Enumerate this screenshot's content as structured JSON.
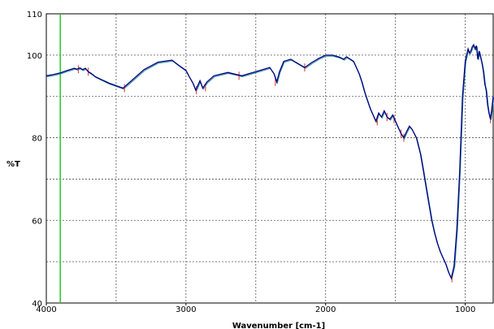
{
  "chart_data": {
    "type": "line",
    "xlabel": "Wavenumber [cm-1]",
    "ylabel": "%T",
    "xlim": [
      4000,
      800
    ],
    "ylim": [
      40,
      110
    ],
    "x_reversed": true,
    "grid": true,
    "xticks": [
      4000,
      3000,
      2000,
      1000
    ],
    "xtick_labels": [
      "4000",
      "3000",
      "2000",
      "1000"
    ],
    "yticks": [
      40,
      60,
      80,
      100,
      110
    ],
    "ytick_labels": [
      "40",
      "60",
      "80",
      "100",
      "110"
    ],
    "marker_line_x": 3900,
    "colors": {
      "spectrum": "#000080",
      "overlay": "#2b8c9c",
      "peak_marker": "#e05050",
      "marker_line": "#22cc22",
      "grid": "#555555"
    },
    "series": [
      {
        "x": [
          4000,
          3950,
          3900,
          3850,
          3800,
          3780,
          3760,
          3740,
          3720,
          3700,
          3680,
          3650,
          3600,
          3550,
          3500,
          3450,
          3400,
          3300,
          3200,
          3100,
          3050,
          3000,
          2980,
          2950,
          2930,
          2900,
          2880,
          2850,
          2800,
          2700,
          2600,
          2500,
          2400,
          2370,
          2350,
          2330,
          2300,
          2250,
          2200,
          2150,
          2100,
          2050,
          2000,
          1950,
          1900,
          1870,
          1850,
          1800,
          1780,
          1760,
          1740,
          1720,
          1700,
          1680,
          1660,
          1640,
          1620,
          1600,
          1580,
          1560,
          1540,
          1520,
          1500,
          1480,
          1460,
          1440,
          1420,
          1400,
          1380,
          1350,
          1320,
          1300,
          1280,
          1260,
          1240,
          1220,
          1200,
          1180,
          1160,
          1140,
          1120,
          1100,
          1080,
          1060,
          1040,
          1020,
          1000,
          990,
          980,
          970,
          960,
          950,
          940,
          930,
          920,
          910,
          900,
          890,
          880,
          870,
          860,
          850,
          840,
          830,
          820,
          810,
          800
        ],
        "y": [
          95.0,
          95.3,
          95.7,
          96.3,
          96.8,
          96.6,
          96.9,
          96.5,
          96.8,
          96.0,
          95.6,
          94.8,
          94.0,
          93.2,
          92.6,
          92.0,
          93.5,
          96.5,
          98.3,
          98.8,
          97.5,
          96.3,
          95.0,
          93.2,
          91.5,
          93.8,
          92.0,
          93.5,
          95.0,
          95.8,
          95.0,
          96.0,
          97.0,
          95.5,
          93.5,
          96.0,
          98.5,
          99.0,
          98.0,
          97.0,
          98.2,
          99.2,
          100.0,
          100.0,
          99.5,
          99.0,
          99.6,
          98.5,
          97.0,
          95.5,
          93.5,
          91.0,
          89.0,
          87.0,
          85.5,
          84.0,
          86.0,
          85.0,
          86.5,
          85.0,
          84.5,
          85.5,
          84.0,
          82.5,
          81.0,
          80.0,
          81.5,
          82.8,
          82.0,
          80.0,
          76.0,
          72.0,
          68.0,
          64.0,
          60.0,
          57.0,
          54.5,
          52.5,
          51.0,
          49.5,
          47.5,
          46.0,
          49.0,
          58.0,
          72.0,
          90.0,
          98.5,
          100.0,
          101.5,
          100.5,
          101.0,
          102.0,
          102.5,
          101.5,
          102.3,
          99.0,
          101.0,
          99.5,
          98.0,
          96.0,
          93.0,
          91.5,
          88.0,
          86.0,
          84.5,
          87.0,
          90.0
        ]
      }
    ],
    "peak_markers": [
      {
        "x": 3770,
        "y": 96.6
      },
      {
        "x": 3700,
        "y": 96.0
      },
      {
        "x": 3440,
        "y": 92.0
      },
      {
        "x": 2925,
        "y": 91.5
      },
      {
        "x": 2860,
        "y": 92.2
      },
      {
        "x": 2620,
        "y": 95.0
      },
      {
        "x": 2360,
        "y": 93.5
      },
      {
        "x": 2150,
        "y": 97.0
      },
      {
        "x": 1630,
        "y": 84.0
      },
      {
        "x": 1560,
        "y": 85.0
      },
      {
        "x": 1510,
        "y": 84.5
      },
      {
        "x": 1460,
        "y": 81.0
      },
      {
        "x": 1440,
        "y": 80.0
      },
      {
        "x": 1095,
        "y": 46.0
      },
      {
        "x": 820,
        "y": 84.5
      }
    ]
  }
}
